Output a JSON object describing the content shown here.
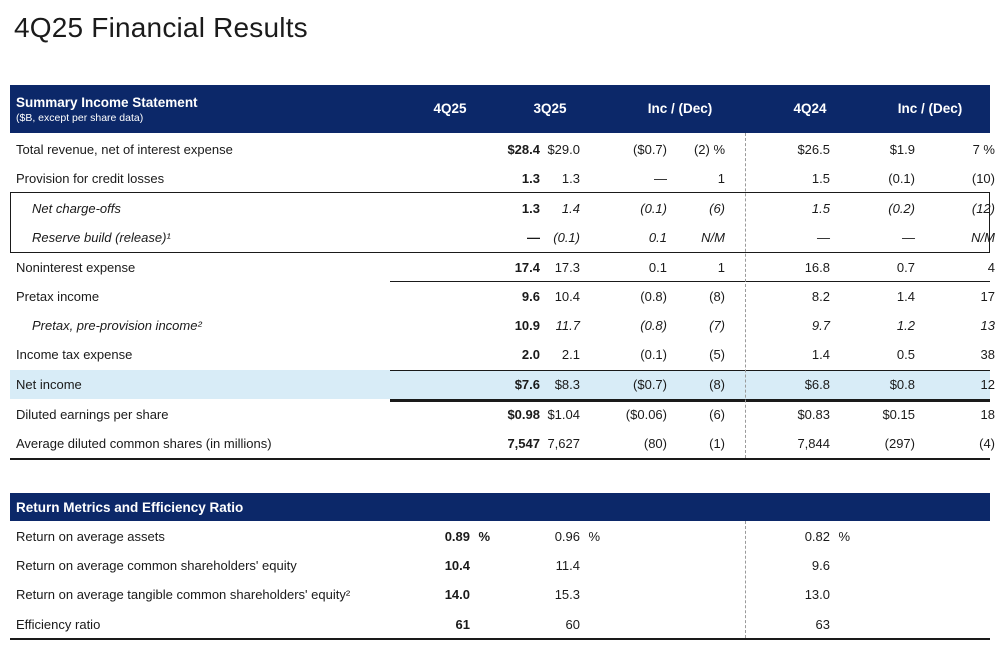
{
  "page_title": "4Q25 Financial Results",
  "income": {
    "title": "Summary Income Statement",
    "subtitle": "($B, except per share data)",
    "columns": [
      "4Q25",
      "3Q25",
      "Inc / (Dec)",
      "4Q24",
      "Inc / (Dec)"
    ],
    "rows": [
      {
        "label": "Total revenue, net of interest expense",
        "cur": "$28.4",
        "prev": "$29.0",
        "d1": "($0.7)",
        "p1": "(2) %",
        "ly": "$26.5",
        "d2": "$1.9",
        "p2": "7 %"
      },
      {
        "label": "Provision for credit losses",
        "cur": "1.3",
        "prev": "1.3",
        "d1": "—",
        "p1": "1",
        "ly": "1.5",
        "d2": "(0.1)",
        "p2": "(10)"
      },
      {
        "label": "Net charge-offs",
        "cur": "1.3",
        "prev": "1.4",
        "d1": "(0.1)",
        "p1": "(6)",
        "ly": "1.5",
        "d2": "(0.2)",
        "p2": "(12)"
      },
      {
        "label": "Reserve build (release)¹",
        "cur": "—",
        "prev": "(0.1)",
        "d1": "0.1",
        "p1": "N/M",
        "ly": "—",
        "d2": "—",
        "p2": "N/M"
      },
      {
        "label": "Noninterest expense",
        "cur": "17.4",
        "prev": "17.3",
        "d1": "0.1",
        "p1": "1",
        "ly": "16.8",
        "d2": "0.7",
        "p2": "4"
      },
      {
        "label": "Pretax income",
        "cur": "9.6",
        "prev": "10.4",
        "d1": "(0.8)",
        "p1": "(8)",
        "ly": "8.2",
        "d2": "1.4",
        "p2": "17"
      },
      {
        "label": "Pretax, pre-provision income²",
        "cur": "10.9",
        "prev": "11.7",
        "d1": "(0.8)",
        "p1": "(7)",
        "ly": "9.7",
        "d2": "1.2",
        "p2": "13"
      },
      {
        "label": "Income tax expense",
        "cur": "2.0",
        "prev": "2.1",
        "d1": "(0.1)",
        "p1": "(5)",
        "ly": "1.4",
        "d2": "0.5",
        "p2": "38"
      },
      {
        "label": "Net income",
        "cur": "$7.6",
        "prev": "$8.3",
        "d1": "($0.7)",
        "p1": "(8)",
        "ly": "$6.8",
        "d2": "$0.8",
        "p2": "12"
      },
      {
        "label": "Diluted earnings per share",
        "cur": "$0.98",
        "prev": "$1.04",
        "d1": "($0.06)",
        "p1": "(6)",
        "ly": "$0.83",
        "d2": "$0.15",
        "p2": "18"
      },
      {
        "label": "Average diluted common shares (in millions)",
        "cur": "7,547",
        "prev": "7,627",
        "d1": "(80)",
        "p1": "(1)",
        "ly": "7,844",
        "d2": "(297)",
        "p2": "(4)"
      }
    ]
  },
  "returns": {
    "title": "Return Metrics and Efficiency Ratio",
    "pct": "%",
    "rows": [
      {
        "label": "Return on average assets",
        "cur": "0.89",
        "prev": "0.96",
        "ly": "0.82"
      },
      {
        "label": "Return on average common shareholders' equity",
        "cur": "10.4",
        "prev": "11.4",
        "ly": "9.6"
      },
      {
        "label": "Return on average tangible common shareholders' equity²",
        "cur": "14.0",
        "prev": "15.3",
        "ly": "13.0"
      },
      {
        "label": "Efficiency ratio",
        "cur": "61",
        "prev": "60",
        "ly": "63"
      }
    ]
  }
}
